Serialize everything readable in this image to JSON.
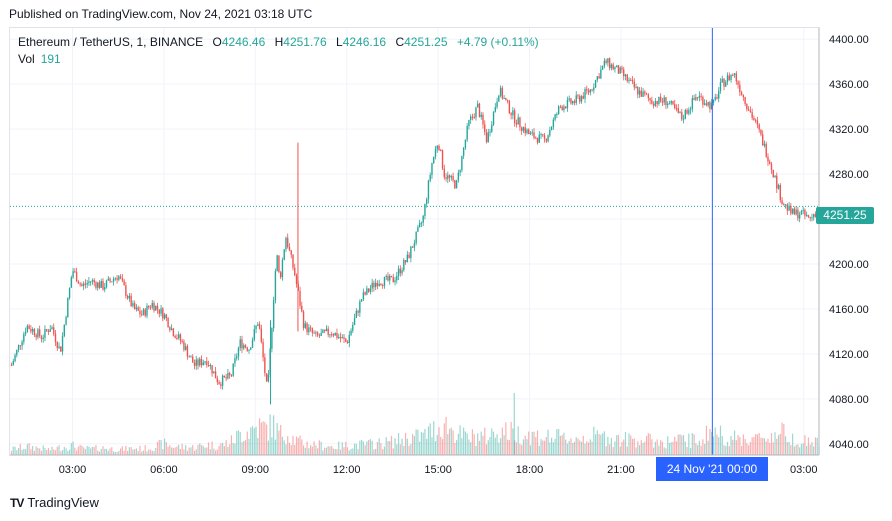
{
  "header": {
    "published": "Published on TradingView.com, Nov 24, 2021 03:18 UTC"
  },
  "legend": {
    "symbol": "Ethereum / TetherUS, 1, BINANCE",
    "open_label": "O",
    "open": "4246.46",
    "high_label": "H",
    "high": "4251.76",
    "low_label": "L",
    "low": "4246.16",
    "close_label": "C",
    "close": "4251.25",
    "change": "+4.79 (+0.11%)",
    "vol_label": "Vol",
    "vol": "191"
  },
  "price_label": "4251.25",
  "cursor_time_label": "24 Nov '21   00:00",
  "brand": {
    "name": "TradingView",
    "logo": "TV"
  },
  "colors": {
    "up": "#26a69a",
    "down": "#ef5350",
    "crosshair": "#2962ff",
    "grid": "#f0f3fa"
  },
  "chart_data": {
    "type": "line",
    "title": "Ethereum / TetherUS, 1, BINANCE",
    "xlabel": "",
    "ylabel": "",
    "ylim": [
      4030,
      4410
    ],
    "yticks": [
      4040,
      4080,
      4120,
      4160,
      4200,
      4240,
      4280,
      4320,
      4360,
      4400
    ],
    "ytick_labels": [
      "4040.00",
      "4080.00",
      "4120.00",
      "4160.00",
      "4200.00",
      "4240.00",
      "4280.00",
      "4320.00",
      "4360.00",
      "4400.00"
    ],
    "xticks": [
      "03:00",
      "06:00",
      "09:00",
      "12:00",
      "15:00",
      "18:00",
      "21:00",
      "03:00"
    ],
    "xtick_hours": [
      3,
      6,
      9,
      12,
      15,
      18,
      21,
      27
    ],
    "xlim_hours": [
      0.95,
      27.5
    ],
    "cursor_hour": 24,
    "last_price": 4251.25,
    "series": [
      {
        "x_hours": [
          1.0,
          1.5,
          2.0,
          2.3,
          2.6,
          3.0,
          3.3,
          3.6,
          4.0,
          4.5,
          5.0,
          5.3,
          5.6,
          6.0,
          6.3,
          6.6,
          7.0,
          7.4,
          7.8,
          8.2,
          8.5,
          8.8,
          9.1,
          9.4,
          9.6,
          9.7,
          9.8,
          10.0,
          10.3,
          10.6,
          11.0,
          11.5,
          12.0,
          12.5,
          13.0,
          13.5,
          14.0,
          14.5,
          14.8,
          15.0,
          15.2,
          15.6,
          16.0,
          16.3,
          16.6,
          17.0,
          17.5,
          18.0,
          18.5,
          19.0,
          19.5,
          20.0,
          20.5,
          21.0,
          21.5,
          22.0,
          22.5,
          23.0,
          23.5,
          24.0,
          24.3,
          24.7,
          25.0,
          25.5,
          25.9,
          26.3,
          26.6,
          26.9,
          27.2,
          27.5
        ],
        "close": [
          4110,
          4145,
          4135,
          4145,
          4122,
          4195,
          4180,
          4185,
          4180,
          4190,
          4160,
          4155,
          4165,
          4155,
          4140,
          4130,
          4110,
          4115,
          4095,
          4100,
          4130,
          4125,
          4150,
          4085,
          4170,
          4210,
          4185,
          4225,
          4190,
          4145,
          4135,
          4140,
          4130,
          4170,
          4185,
          4185,
          4205,
          4240,
          4290,
          4310,
          4280,
          4270,
          4325,
          4340,
          4310,
          4355,
          4330,
          4315,
          4310,
          4340,
          4345,
          4355,
          4380,
          4370,
          4355,
          4345,
          4345,
          4330,
          4350,
          4340,
          4360,
          4370,
          4350,
          4320,
          4290,
          4255,
          4245,
          4245,
          4240,
          4250
        ],
        "volume": [
          60,
          90,
          70,
          55,
          80,
          100,
          70,
          65,
          75,
          60,
          70,
          65,
          80,
          120,
          90,
          85,
          80,
          110,
          95,
          140,
          220,
          260,
          300,
          280,
          320,
          260,
          220,
          240,
          160,
          120,
          110,
          90,
          100,
          110,
          120,
          140,
          180,
          200,
          260,
          280,
          330,
          230,
          180,
          200,
          190,
          260,
          230,
          210,
          190,
          180,
          170,
          200,
          190,
          160,
          170,
          150,
          140,
          160,
          150,
          260,
          210,
          170,
          180,
          170,
          200,
          240,
          190,
          150,
          140,
          130
        ]
      }
    ]
  }
}
